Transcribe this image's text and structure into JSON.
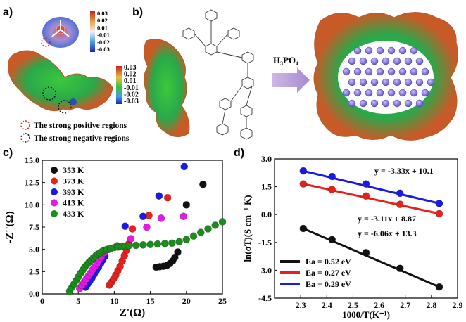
{
  "panels": {
    "a": "a)",
    "b": "b)",
    "c": "c)",
    "d": "d)"
  },
  "panel_a": {
    "colorbar_small_ticks": [
      "0.03",
      "0.02",
      "0.01",
      "-0.01",
      "-0.02",
      "-0.03"
    ],
    "colorbar_large_ticks": [
      "0.03",
      "0.02",
      "0.01",
      "-0.01",
      "-0.02",
      "-0.03"
    ],
    "legend": [
      {
        "text": "The strong positive regions",
        "color": "#d62020"
      },
      {
        "text": "The strong negative regions",
        "color": "#111111"
      }
    ]
  },
  "panel_b": {
    "arrow_label": "H₃PO₄"
  },
  "chart_data": [
    {
      "panel": "c",
      "type": "scatter",
      "xlabel": "Z'(Ω)",
      "ylabel": "-Z''(Ω)",
      "xlim": [
        0,
        25
      ],
      "ylim": [
        0,
        15
      ],
      "xticks": [
        0,
        5,
        10,
        15,
        20,
        25
      ],
      "yticks": [
        0.0,
        2.5,
        5.0,
        7.5,
        10.0,
        12.5,
        15.0
      ],
      "xtick_labels": [
        "0",
        "5",
        "10",
        "15",
        "20",
        "25"
      ],
      "ytick_labels": [
        "0.0",
        "2.5",
        "5.0",
        "7.5",
        "10.0",
        "12.5",
        "15.0"
      ],
      "legend_position": "top-left",
      "series": [
        {
          "name": "353 K",
          "color": "#111111",
          "x": [
            15.8,
            16.3,
            16.8,
            17.3,
            17.7,
            18.1,
            18.4,
            18.8,
            20.0,
            22.3
          ],
          "y": [
            3.0,
            3.05,
            3.1,
            3.2,
            3.4,
            3.7,
            4.1,
            4.7,
            10.0,
            12.3
          ]
        },
        {
          "name": "373 K",
          "color": "#e8201c",
          "x": [
            9.3,
            9.6,
            9.9,
            10.2,
            10.5,
            10.8,
            11.1,
            11.4,
            11.7,
            12.0,
            12.5,
            14.8,
            17.4
          ],
          "y": [
            1.0,
            1.3,
            1.7,
            2.1,
            2.6,
            3.1,
            3.7,
            4.3,
            4.9,
            5.6,
            7.3,
            8.8,
            10.8
          ]
        },
        {
          "name": "393 K",
          "color": "#1a1ae6",
          "x": [
            6.0,
            6.3,
            6.6,
            6.9,
            7.2,
            7.5,
            7.8,
            8.1,
            8.4,
            8.7,
            9.2,
            11.5,
            14.0,
            16.2,
            19.7
          ],
          "y": [
            0.75,
            1.1,
            1.45,
            1.8,
            2.2,
            2.6,
            3.0,
            3.4,
            3.8,
            4.2,
            5.0,
            7.6,
            8.7,
            11.0,
            14.3
          ]
        },
        {
          "name": "413 K",
          "color": "#e619e6",
          "x": [
            5.2,
            5.5,
            5.8,
            6.1,
            6.4,
            6.7,
            7.0,
            7.3,
            7.6,
            7.9,
            8.2,
            8.6,
            10.4,
            12.3,
            14.5,
            16.5,
            19.6
          ],
          "y": [
            0.6,
            0.95,
            1.3,
            1.65,
            2.0,
            2.35,
            2.7,
            3.05,
            3.4,
            3.75,
            4.1,
            4.6,
            5.4,
            6.2,
            7.5,
            8.5,
            8.7
          ]
        },
        {
          "name": "433 K",
          "color": "#1c8c1c",
          "x": [
            3.8,
            4.1,
            4.4,
            4.7,
            5.0,
            5.3,
            5.6,
            5.9,
            6.2,
            6.5,
            6.8,
            7.1,
            7.4,
            7.7,
            8.0,
            8.3,
            8.6,
            9.0,
            9.5,
            10.0,
            10.5,
            11.0,
            11.5,
            12.0,
            13.0,
            14.0,
            15.0,
            16.0,
            17.0,
            18.0,
            19.0,
            20.0,
            21.0,
            22.0,
            23.0,
            24.0,
            25.0
          ],
          "y": [
            0.3,
            0.7,
            1.1,
            1.5,
            1.9,
            2.3,
            2.65,
            3.0,
            3.3,
            3.55,
            3.8,
            4.05,
            4.25,
            4.45,
            4.6,
            4.75,
            4.9,
            5.0,
            5.1,
            5.2,
            5.25,
            5.3,
            5.35,
            5.4,
            5.45,
            5.5,
            5.55,
            5.6,
            5.65,
            5.7,
            5.85,
            6.1,
            6.5,
            6.9,
            7.3,
            7.7,
            8.1
          ]
        }
      ]
    },
    {
      "panel": "d",
      "type": "line",
      "xlabel": "1000/T(K⁻¹)",
      "ylabel": "ln(σT)(S cm⁻¹ K)",
      "xlim": [
        2.2,
        2.9
      ],
      "ylim": [
        -4.5,
        3.0
      ],
      "xticks": [
        2.3,
        2.4,
        2.5,
        2.6,
        2.7,
        2.8,
        2.9
      ],
      "yticks": [
        -4.5,
        -3.0,
        -1.5,
        0.0,
        1.5,
        3.0
      ],
      "xtick_labels": [
        "2.3",
        "2.4",
        "2.5",
        "2.6",
        "2.7",
        "2.8",
        "2.9"
      ],
      "ytick_labels": [
        "-4.5",
        "-3.0",
        "-1.5",
        "0.0",
        "1.5",
        "3.0"
      ],
      "legend_position": "bottom-left",
      "annotations": [
        "y = -3.33x + 10.1",
        "y = -3.11x + 8.87",
        "y = -6.06x + 13.3"
      ],
      "series": [
        {
          "name": "Ea = 0.52 eV",
          "color": "#111111",
          "x": [
            2.31,
            2.42,
            2.55,
            2.68,
            2.83
          ],
          "y": [
            -0.75,
            -1.35,
            -2.05,
            -2.9,
            -3.9
          ],
          "fit": {
            "slope": -6.06,
            "intercept": 13.3
          }
        },
        {
          "name": "Ea = 0.27 eV",
          "color": "#e8201c",
          "x": [
            2.31,
            2.42,
            2.55,
            2.68,
            2.83
          ],
          "y": [
            1.65,
            1.35,
            1.0,
            0.55,
            0.05
          ],
          "fit": {
            "slope": -3.11,
            "intercept": 8.87
          }
        },
        {
          "name": "Ea = 0.29 eV",
          "color": "#1a1ae6",
          "x": [
            2.31,
            2.42,
            2.55,
            2.68,
            2.83
          ],
          "y": [
            2.35,
            2.05,
            1.65,
            1.15,
            0.6
          ],
          "fit": {
            "slope": -3.33,
            "intercept": 10.1
          }
        }
      ]
    }
  ]
}
